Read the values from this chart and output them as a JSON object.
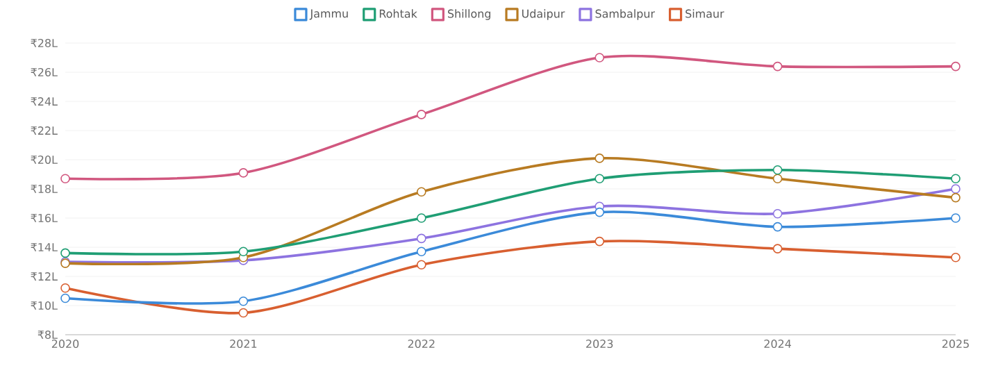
{
  "chart_data": {
    "type": "line",
    "x": [
      2020,
      2021,
      2022,
      2023,
      2024,
      2025
    ],
    "series": [
      {
        "name": "Jammu",
        "color": "#3b8ad9",
        "values": [
          10.5,
          10.3,
          13.7,
          16.4,
          15.4,
          16.0
        ]
      },
      {
        "name": "Rohtak",
        "color": "#1f9e74",
        "values": [
          13.6,
          13.7,
          16.0,
          18.7,
          19.3,
          18.7
        ]
      },
      {
        "name": "Shillong",
        "color": "#d1577f",
        "values": [
          18.7,
          19.1,
          23.1,
          27.0,
          26.4,
          26.4
        ]
      },
      {
        "name": "Udaipur",
        "color": "#b87b22",
        "values": [
          12.9,
          13.3,
          17.8,
          20.1,
          18.7,
          17.4
        ]
      },
      {
        "name": "Sambalpur",
        "color": "#8d73e0",
        "values": [
          13.0,
          13.1,
          14.6,
          16.8,
          16.3,
          18.0
        ]
      },
      {
        "name": "Simaur",
        "color": "#d85f30",
        "values": [
          11.2,
          9.5,
          12.8,
          14.4,
          13.9,
          13.3
        ]
      }
    ],
    "xlim": [
      2020,
      2025
    ],
    "xticks": [
      2020,
      2021,
      2022,
      2023,
      2024,
      2025
    ],
    "ylim": [
      8,
      28
    ],
    "yticks": [
      {
        "value": 8,
        "label": "₹8L"
      },
      {
        "value": 10,
        "label": "₹10L"
      },
      {
        "value": 12,
        "label": "₹12L"
      },
      {
        "value": 14,
        "label": "₹14L"
      },
      {
        "value": 16,
        "label": "₹16L"
      },
      {
        "value": 18,
        "label": "₹18L"
      },
      {
        "value": 20,
        "label": "₹20L"
      },
      {
        "value": 22,
        "label": "₹22L"
      },
      {
        "value": 24,
        "label": "₹24L"
      },
      {
        "value": 26,
        "label": "₹26L"
      },
      {
        "value": 28,
        "label": "₹28L"
      }
    ],
    "grid": "y",
    "legend": "top",
    "marker": "circle",
    "line_style": "solid"
  }
}
